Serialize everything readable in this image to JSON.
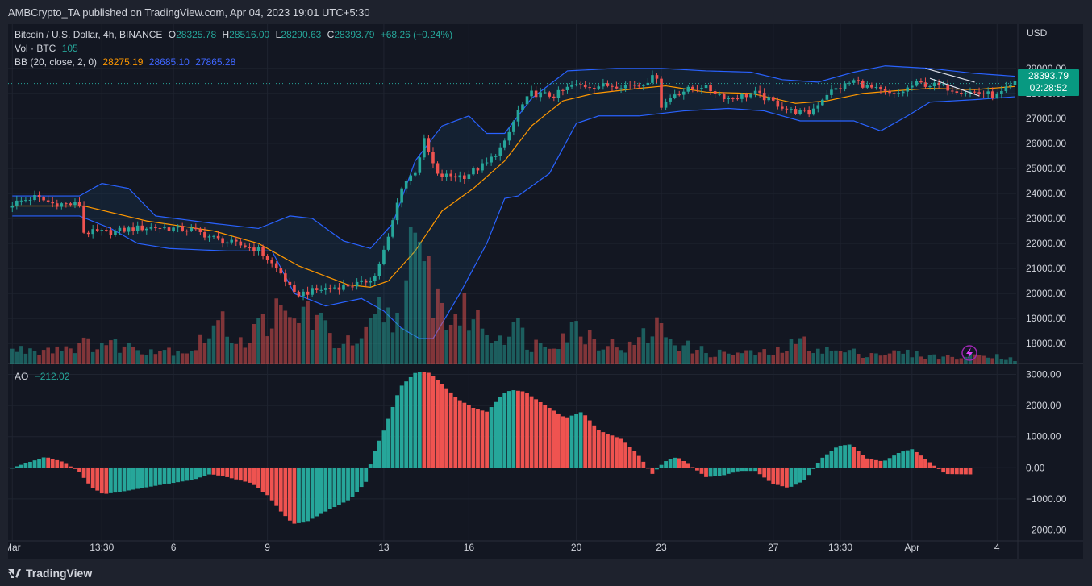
{
  "header": {
    "published": "AMBCrypto_TA published on TradingView.com, Apr 04, 2023 19:01 UTC+5:30"
  },
  "legend": {
    "symbol": "Bitcoin / U.S. Dollar, 4h, BINANCE",
    "o_label": "O",
    "o": "28325.78",
    "h_label": "H",
    "h": "28516.00",
    "l_label": "L",
    "l": "28290.63",
    "c_label": "C",
    "c": "28393.79",
    "change": "+68.26 (+0.24%)",
    "vol_label": "Vol · BTC",
    "vol": "105",
    "bb_label": "BB (20, close, 2, 0)",
    "bb_basis": "28275.19",
    "bb_upper": "28685.10",
    "bb_lower": "27865.28",
    "ao_label": "AO",
    "ao": "−212.02"
  },
  "axis": {
    "currency": "USD",
    "last_price": "28393.79",
    "countdown": "02:28:52"
  },
  "footer": {
    "brand": "TradingView"
  },
  "colors": {
    "up": "#26a69a",
    "down": "#ef5350",
    "basis": "#ff9800",
    "bands": "#2962ff",
    "background": "#131722",
    "grid": "#1f2430"
  },
  "chart_data": [
    {
      "type": "candlestick",
      "title": "Bitcoin / U.S. Dollar, 4h, BINANCE",
      "ylabel": "USD",
      "ylim": [
        17200,
        29800
      ],
      "yticks": [
        18000,
        19000,
        20000,
        21000,
        22000,
        23000,
        24000,
        25000,
        26000,
        27000,
        28000,
        29000
      ],
      "ytick_labels": [
        "18000.00",
        "19000.00",
        "20000.00",
        "21000.00",
        "22000.00",
        "23000.00",
        "24000.00",
        "25000.00",
        "26000.00",
        "27000.00",
        "28000.00",
        "29000.00"
      ],
      "x_labels": [
        {
          "label": "Mar",
          "x": 0
        },
        {
          "label": "13:30",
          "x": 20
        },
        {
          "label": "6",
          "x": 36
        },
        {
          "label": "9",
          "x": 57
        },
        {
          "label": "13",
          "x": 83
        },
        {
          "label": "16",
          "x": 102
        },
        {
          "label": "20",
          "x": 126
        },
        {
          "label": "23",
          "x": 145
        },
        {
          "label": "27",
          "x": 170
        },
        {
          "label": "13:30",
          "x": 185
        },
        {
          "label": "Apr",
          "x": 201
        },
        {
          "label": "4",
          "x": 220
        }
      ],
      "close_keypoints": [
        [
          0,
          23600
        ],
        [
          5,
          23850
        ],
        [
          9,
          23600
        ],
        [
          15,
          23550
        ],
        [
          16,
          22450
        ],
        [
          22,
          22450
        ],
        [
          27,
          22600
        ],
        [
          32,
          22650
        ],
        [
          40,
          22550
        ],
        [
          46,
          22150
        ],
        [
          55,
          21750
        ],
        [
          60,
          20800
        ],
        [
          63,
          19950
        ],
        [
          70,
          20200
        ],
        [
          78,
          20400
        ],
        [
          81,
          20700
        ],
        [
          84,
          22200
        ],
        [
          87,
          24300
        ],
        [
          90,
          24900
        ],
        [
          92,
          26100
        ],
        [
          95,
          24700
        ],
        [
          101,
          24700
        ],
        [
          106,
          25200
        ],
        [
          110,
          26000
        ],
        [
          113,
          27300
        ],
        [
          116,
          28000
        ],
        [
          121,
          27900
        ],
        [
          125,
          28300
        ],
        [
          130,
          28300
        ],
        [
          140,
          28350
        ],
        [
          144,
          28700
        ],
        [
          145,
          27500
        ],
        [
          148,
          28000
        ],
        [
          154,
          28300
        ],
        [
          160,
          27800
        ],
        [
          166,
          28000
        ],
        [
          174,
          27300
        ],
        [
          178,
          27200
        ],
        [
          182,
          28000
        ],
        [
          188,
          28500
        ],
        [
          192,
          28200
        ],
        [
          197,
          27900
        ],
        [
          202,
          28400
        ],
        [
          207,
          28300
        ],
        [
          212,
          28100
        ],
        [
          217,
          28000
        ],
        [
          220,
          27900
        ],
        [
          224,
          28394
        ]
      ],
      "bb": {
        "basis_keypoints": [
          [
            0,
            23500
          ],
          [
            16,
            23500
          ],
          [
            30,
            22900
          ],
          [
            45,
            22500
          ],
          [
            55,
            22000
          ],
          [
            64,
            21100
          ],
          [
            75,
            20350
          ],
          [
            80,
            20250
          ],
          [
            84,
            20500
          ],
          [
            90,
            21700
          ],
          [
            96,
            23300
          ],
          [
            103,
            24200
          ],
          [
            110,
            25300
          ],
          [
            116,
            26700
          ],
          [
            123,
            27700
          ],
          [
            130,
            28000
          ],
          [
            140,
            28200
          ],
          [
            146,
            28300
          ],
          [
            155,
            28050
          ],
          [
            165,
            28000
          ],
          [
            175,
            27600
          ],
          [
            182,
            27700
          ],
          [
            190,
            28000
          ],
          [
            197,
            28100
          ],
          [
            205,
            28200
          ],
          [
            215,
            28150
          ],
          [
            224,
            28275
          ]
        ],
        "upper_keypoints": [
          [
            0,
            23900
          ],
          [
            15,
            23900
          ],
          [
            20,
            24400
          ],
          [
            26,
            24200
          ],
          [
            32,
            23100
          ],
          [
            45,
            22800
          ],
          [
            55,
            22600
          ],
          [
            62,
            23100
          ],
          [
            67,
            23000
          ],
          [
            74,
            22100
          ],
          [
            80,
            21800
          ],
          [
            85,
            22800
          ],
          [
            90,
            25300
          ],
          [
            96,
            26700
          ],
          [
            102,
            27100
          ],
          [
            106,
            26400
          ],
          [
            110,
            26400
          ],
          [
            116,
            27800
          ],
          [
            124,
            28900
          ],
          [
            135,
            29000
          ],
          [
            145,
            29000
          ],
          [
            155,
            28900
          ],
          [
            165,
            28850
          ],
          [
            172,
            28550
          ],
          [
            180,
            28450
          ],
          [
            188,
            28850
          ],
          [
            195,
            29100
          ],
          [
            205,
            29000
          ],
          [
            215,
            28800
          ],
          [
            224,
            28685
          ]
        ],
        "lower_keypoints": [
          [
            0,
            23100
          ],
          [
            15,
            23100
          ],
          [
            22,
            22600
          ],
          [
            28,
            22000
          ],
          [
            35,
            21800
          ],
          [
            48,
            21700
          ],
          [
            58,
            21700
          ],
          [
            63,
            20000
          ],
          [
            70,
            19500
          ],
          [
            78,
            19800
          ],
          [
            83,
            19300
          ],
          [
            87,
            18600
          ],
          [
            91,
            18200
          ],
          [
            94,
            18200
          ],
          [
            100,
            20000
          ],
          [
            106,
            22000
          ],
          [
            110,
            23800
          ],
          [
            113,
            23900
          ],
          [
            120,
            24800
          ],
          [
            126,
            26800
          ],
          [
            131,
            27100
          ],
          [
            140,
            27100
          ],
          [
            150,
            27300
          ],
          [
            160,
            27400
          ],
          [
            168,
            27300
          ],
          [
            176,
            26900
          ],
          [
            182,
            26900
          ],
          [
            188,
            26900
          ],
          [
            194,
            26500
          ],
          [
            200,
            27100
          ],
          [
            205,
            27650
          ],
          [
            215,
            27750
          ],
          [
            224,
            27865
          ]
        ]
      },
      "trendlines": [
        {
          "from": [
            204,
            29000
          ],
          "to": [
            215,
            28450
          ]
        },
        {
          "from": [
            205,
            28600
          ],
          "to": [
            216,
            27900
          ]
        }
      ],
      "last_price": 28393.79
    },
    {
      "type": "bar",
      "title": "Vol · BTC",
      "last_value": 105,
      "relative_keypoints": [
        [
          0,
          18
        ],
        [
          10,
          22
        ],
        [
          20,
          28
        ],
        [
          30,
          20
        ],
        [
          40,
          18
        ],
        [
          46,
          55
        ],
        [
          52,
          30
        ],
        [
          58,
          70
        ],
        [
          62,
          55
        ],
        [
          66,
          75
        ],
        [
          72,
          30
        ],
        [
          78,
          26
        ],
        [
          82,
          70
        ],
        [
          86,
          60
        ],
        [
          89,
          140
        ],
        [
          93,
          120
        ],
        [
          97,
          60
        ],
        [
          102,
          70
        ],
        [
          108,
          35
        ],
        [
          112,
          55
        ],
        [
          116,
          25
        ],
        [
          122,
          35
        ],
        [
          126,
          50
        ],
        [
          132,
          28
        ],
        [
          138,
          22
        ],
        [
          144,
          50
        ],
        [
          150,
          24
        ],
        [
          156,
          14
        ],
        [
          165,
          14
        ],
        [
          170,
          14
        ],
        [
          176,
          30
        ],
        [
          182,
          18
        ],
        [
          190,
          14
        ],
        [
          200,
          14
        ],
        [
          205,
          10
        ],
        [
          212,
          8
        ],
        [
          218,
          14
        ],
        [
          224,
          5
        ]
      ]
    },
    {
      "type": "bar",
      "title": "AO",
      "ylim": [
        -2350,
        3350
      ],
      "yticks": [
        -2000,
        -1000,
        0,
        1000,
        2000,
        3000
      ],
      "ytick_labels": [
        "−2000.00",
        "−1000.00",
        "0.00",
        "1000.00",
        "2000.00",
        "3000.00"
      ],
      "last_value": -212.02,
      "keypoints": [
        [
          0,
          0
        ],
        [
          8,
          350
        ],
        [
          12,
          200
        ],
        [
          16,
          -100
        ],
        [
          19,
          -600
        ],
        [
          22,
          -850
        ],
        [
          26,
          -780
        ],
        [
          36,
          -550
        ],
        [
          44,
          -380
        ],
        [
          48,
          -200
        ],
        [
          52,
          -300
        ],
        [
          58,
          -500
        ],
        [
          62,
          -900
        ],
        [
          65,
          -1400
        ],
        [
          68,
          -1800
        ],
        [
          71,
          -1750
        ],
        [
          76,
          -1400
        ],
        [
          82,
          -1000
        ],
        [
          86,
          -400
        ],
        [
          87,
          300
        ],
        [
          90,
          1200
        ],
        [
          94,
          2600
        ],
        [
          98,
          3100
        ],
        [
          101,
          3050
        ],
        [
          104,
          2700
        ],
        [
          108,
          2200
        ],
        [
          112,
          1900
        ],
        [
          115,
          1800
        ],
        [
          119,
          2400
        ],
        [
          121,
          2500
        ],
        [
          124,
          2450
        ],
        [
          128,
          2100
        ],
        [
          134,
          1600
        ],
        [
          138,
          1800
        ],
        [
          142,
          1200
        ],
        [
          148,
          900
        ],
        [
          152,
          350
        ],
        [
          155,
          -200
        ],
        [
          158,
          200
        ],
        [
          161,
          350
        ],
        [
          164,
          100
        ],
        [
          168,
          -300
        ],
        [
          172,
          -250
        ],
        [
          176,
          -100
        ],
        [
          180,
          -100
        ],
        [
          184,
          -500
        ],
        [
          188,
          -650
        ],
        [
          192,
          -400
        ],
        [
          196,
          300
        ],
        [
          200,
          700
        ],
        [
          203,
          750
        ],
        [
          207,
          300
        ],
        [
          211,
          200
        ],
        [
          215,
          500
        ],
        [
          218,
          600
        ],
        [
          222,
          200
        ],
        [
          226,
          -200
        ],
        [
          232,
          -212
        ]
      ]
    }
  ]
}
